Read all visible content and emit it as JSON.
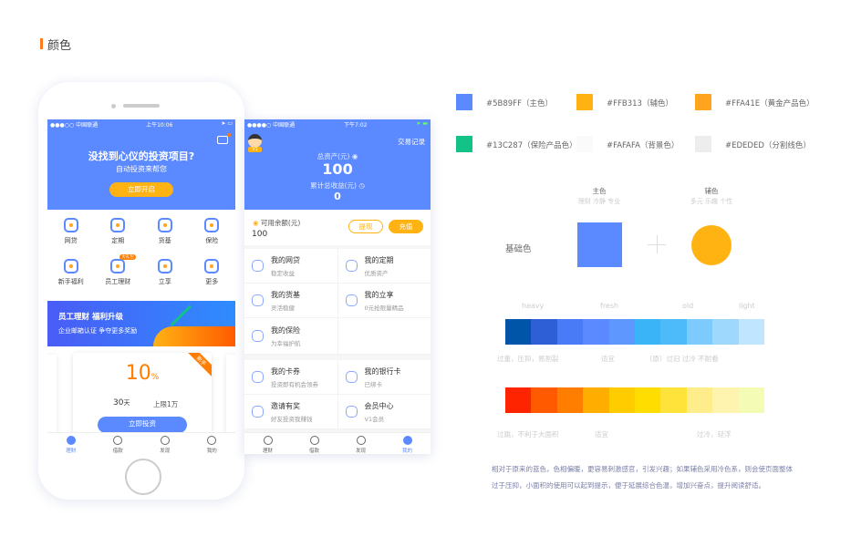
{
  "section_title": "颜色",
  "phone1": {
    "status": {
      "carrier": "●●●○○ 中国联通",
      "time": "上午10:06"
    },
    "header": {
      "title": "没找到心仪的投资项目?",
      "subtitle": "自动投资来帮您",
      "button": "立即开启"
    },
    "grid": [
      {
        "label": "网贷",
        "icon": "coins-icon"
      },
      {
        "label": "定期",
        "icon": "stopwatch-icon"
      },
      {
        "label": "货基",
        "icon": "piggy-bank-icon"
      },
      {
        "label": "保险",
        "icon": "shield-icon"
      },
      {
        "label": "新手福利",
        "icon": "gift-icon"
      },
      {
        "label": "员工理财",
        "icon": "employee-icon",
        "badge": "大礼包"
      },
      {
        "label": "立享",
        "icon": "bag-icon"
      },
      {
        "label": "更多",
        "icon": "more-icon"
      }
    ],
    "banner": {
      "title": "员工理财 福利升级",
      "subtitle": "企业邮箱认证 争夺更多奖励"
    },
    "card": {
      "tag": "新手",
      "rate": "10",
      "rate_unit": "%",
      "days": "30",
      "days_unit": "天",
      "limit": "上限1万",
      "button": "立即投资"
    },
    "tabs": [
      "理财",
      "借款",
      "发现",
      "我的"
    ]
  },
  "phone2": {
    "status": {
      "carrier": "●●●●○ 中国联通",
      "time": "下午7:02"
    },
    "avatar_badge": "V1",
    "records": "交易记录",
    "total_label": "总资产(元)",
    "total": "100",
    "income_label": "累计总收益(元)",
    "income": "0",
    "balance_label": "可用余额(元)",
    "balance": "100",
    "withdraw": "提现",
    "recharge": "充值",
    "rows": [
      [
        {
          "title": "我的网贷",
          "sub": "稳定收益",
          "icon": "coins-icon"
        },
        {
          "title": "我的定期",
          "sub": "优质资产",
          "icon": "calendar-icon"
        }
      ],
      [
        {
          "title": "我的货基",
          "sub": "灵活稳健",
          "icon": "piggy-bank-icon"
        },
        {
          "title": "我的立享",
          "sub": "0元抢限量精品",
          "icon": "bag-icon"
        }
      ],
      [
        {
          "title": "我的保险",
          "sub": "为幸福护航",
          "icon": "shield-icon"
        }
      ],
      [
        {
          "title": "我的卡券",
          "sub": "投资即有机会领券",
          "icon": "ticket-icon"
        },
        {
          "title": "我的银行卡",
          "sub": "已绑卡",
          "icon": "bank-card-icon"
        }
      ],
      [
        {
          "title": "邀请有奖",
          "sub": "好友投资我赚钱",
          "icon": "envelope-icon"
        },
        {
          "title": "会员中心",
          "sub": "V1会员",
          "icon": "diamond-icon"
        }
      ]
    ],
    "tabs": [
      "理财",
      "借款",
      "发现",
      "我的"
    ]
  },
  "palette": [
    {
      "hex": "#5B89FF",
      "label": "#5B89FF（主色）"
    },
    {
      "hex": "#FFB313",
      "label": "#FFB313（辅色）"
    },
    {
      "hex": "#FFA41E",
      "label": "#FFA41E（黄金产品色）"
    },
    {
      "hex": "#13C287",
      "label": "#13C287（保险产品色）"
    },
    {
      "hex": "#FAFAFA",
      "label": "#FAFAFA（背景色）"
    },
    {
      "hex": "#EDEDED",
      "label": "#EDEDED（分割线色）"
    }
  ],
  "basic": {
    "label": "基础色",
    "primary": "主色",
    "primary_desc": "理财 冷静 专业",
    "secondary": "辅色",
    "secondary_desc": "多元 乐趣 个性"
  },
  "blue_scale": {
    "labels": [
      "heavy",
      "fresh",
      "old",
      "light"
    ],
    "notes": [
      "过重，压抑，易割裂",
      "适宜",
      "（原）过旧 过冷 不耐看"
    ],
    "colors": [
      "#0055A8",
      "#2E5FD6",
      "#4A7BF7",
      "#5B89FF",
      "#5E98FF",
      "#3BB3F7",
      "#4DBAF9",
      "#7DCBFC",
      "#9ED8FD",
      "#BFE6FE"
    ]
  },
  "warm_scale": {
    "notes": [
      "过跳，不利于大面积",
      "适宜",
      "过冷，轻浮"
    ],
    "colors": [
      "#FF2400",
      "#FF5A00",
      "#FF7E00",
      "#FFAE00",
      "#FFCC00",
      "#FFDD00",
      "#FFE23A",
      "#FFEC8A",
      "#FFF3B0",
      "#F3FBB5"
    ]
  },
  "description": [
    "相对于原来的蓝色，色相偏暖，更容易刺激感官，引发兴趣；如果辅色采用冷色系，则会使页面整体",
    "过于压抑，小面积的使用可以起到提示，便于延展综合色温，增加兴奋点，提升阅读舒适。"
  ]
}
